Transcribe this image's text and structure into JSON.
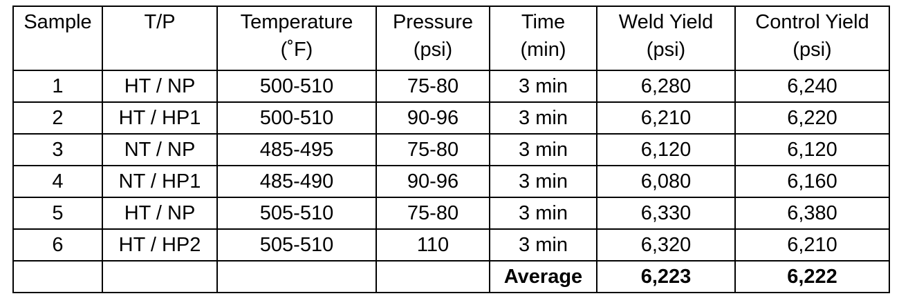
{
  "table": {
    "header": [
      [
        "Sample"
      ],
      [
        "T/P"
      ],
      [
        "Temperature",
        "(˚F)"
      ],
      [
        "Pressure",
        "(psi)"
      ],
      [
        "Time",
        "(min)"
      ],
      [
        "Weld Yield",
        "(psi)"
      ],
      [
        "Control Yield",
        "(psi)"
      ]
    ],
    "rows": [
      [
        "1",
        "HT / NP",
        "500-510",
        "75-80",
        "3 min",
        "6,280",
        "6,240"
      ],
      [
        "2",
        "HT / HP1",
        "500-510",
        "90-96",
        "3 min",
        "6,210",
        "6,220"
      ],
      [
        "3",
        "NT / NP",
        "485-495",
        "75-80",
        "3 min",
        "6,120",
        "6,120"
      ],
      [
        "4",
        "NT / HP1",
        "485-490",
        "90-96",
        "3 min",
        "6,080",
        "6,160"
      ],
      [
        "5",
        "HT / NP",
        "505-510",
        "75-80",
        "3 min",
        "6,330",
        "6,380"
      ],
      [
        "6",
        "HT / HP2",
        "505-510",
        "110",
        "3 min",
        "6,320",
        "6,210"
      ]
    ],
    "footer": {
      "label": "Average",
      "values": [
        "6,223",
        "6,222"
      ]
    }
  }
}
